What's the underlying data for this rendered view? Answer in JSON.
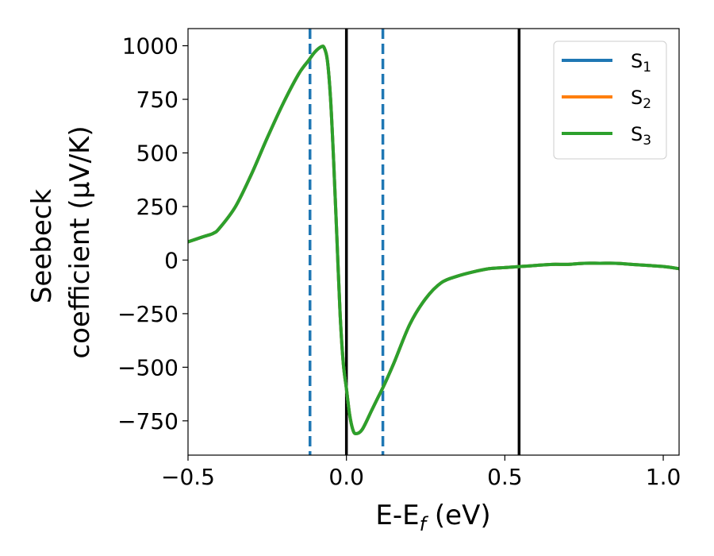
{
  "chart_data": {
    "type": "line",
    "xlabel": "E-E_f (eV)",
    "ylabel_line1": "Seebeck",
    "ylabel_line2": "coefficient  (μV/K)",
    "xlim": [
      -0.5,
      1.05
    ],
    "ylim": [
      -910,
      1080
    ],
    "xticks": [
      -0.5,
      0.0,
      0.5,
      1.0
    ],
    "xtick_labels": [
      "−0.5",
      "0.0",
      "0.5",
      "1.0"
    ],
    "yticks": [
      -750,
      -500,
      -250,
      0,
      250,
      500,
      750,
      1000
    ],
    "ytick_labels": [
      "−750",
      "−500",
      "−250",
      "0",
      "250",
      "500",
      "750",
      "1000"
    ],
    "grid": false,
    "legend_position": "top-right",
    "vlines": [
      {
        "x": -0.115,
        "style": "dashed",
        "color": "#1f77b4"
      },
      {
        "x": 0.115,
        "style": "dashed",
        "color": "#1f77b4"
      },
      {
        "x": 0.0,
        "style": "solid",
        "color": "#000000"
      },
      {
        "x": 0.545,
        "style": "solid",
        "color": "#000000"
      }
    ],
    "x": [
      -0.5,
      -0.45,
      -0.42,
      -0.4,
      -0.35,
      -0.3,
      -0.25,
      -0.2,
      -0.15,
      -0.12,
      -0.1,
      -0.08,
      -0.07,
      -0.06,
      -0.05,
      -0.04,
      -0.03,
      -0.02,
      -0.01,
      0.0,
      0.01,
      0.02,
      0.03,
      0.05,
      0.08,
      0.1,
      0.12,
      0.15,
      0.2,
      0.25,
      0.3,
      0.35,
      0.4,
      0.45,
      0.5,
      0.55,
      0.6,
      0.65,
      0.7,
      0.75,
      0.8,
      0.85,
      0.9,
      0.95,
      1.0,
      1.05
    ],
    "series": [
      {
        "name": "S",
        "sub": "1",
        "color": "#1f77b4",
        "values": [
          85,
          110,
          125,
          150,
          250,
          400,
          570,
          730,
          870,
          930,
          970,
          995,
          990,
          930,
          750,
          450,
          100,
          -250,
          -480,
          -600,
          -720,
          -790,
          -810,
          -790,
          -700,
          -640,
          -580,
          -480,
          -300,
          -180,
          -105,
          -75,
          -55,
          -40,
          -35,
          -30,
          -25,
          -20,
          -20,
          -15,
          -15,
          -15,
          -20,
          -25,
          -30,
          -40
        ]
      },
      {
        "name": "S",
        "sub": "2",
        "color": "#ff7f0e",
        "values": [
          85,
          110,
          125,
          150,
          250,
          400,
          570,
          730,
          870,
          930,
          970,
          995,
          990,
          930,
          750,
          450,
          100,
          -250,
          -480,
          -600,
          -720,
          -790,
          -810,
          -790,
          -700,
          -640,
          -580,
          -480,
          -300,
          -180,
          -105,
          -75,
          -55,
          -40,
          -35,
          -30,
          -25,
          -20,
          -20,
          -15,
          -15,
          -15,
          -20,
          -25,
          -30,
          -40
        ]
      },
      {
        "name": "S",
        "sub": "3",
        "color": "#2ca02c",
        "values": [
          85,
          110,
          125,
          150,
          250,
          400,
          570,
          730,
          870,
          930,
          970,
          995,
          990,
          930,
          750,
          450,
          100,
          -250,
          -480,
          -600,
          -720,
          -790,
          -810,
          -790,
          -700,
          -640,
          -580,
          -480,
          -300,
          -180,
          -105,
          -75,
          -55,
          -40,
          -35,
          -30,
          -25,
          -20,
          -20,
          -15,
          -15,
          -15,
          -20,
          -25,
          -30,
          -40
        ]
      }
    ]
  }
}
